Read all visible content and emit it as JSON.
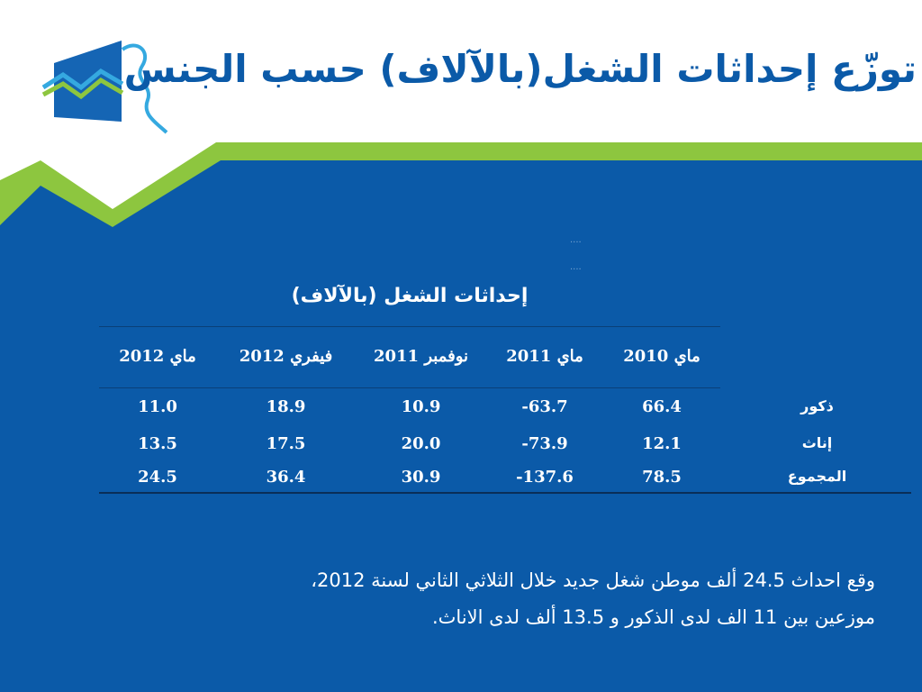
{
  "title": "توزّع إحداثات الشغل(بالآلاف) حسب الجنس",
  "table": {
    "title": "إحداثات الشغل (بالآلاف)",
    "columns": [
      "ماي 2010",
      "ماي 2011",
      "نوفمبر 2011",
      "فيفري 2012",
      "ماي 2012"
    ],
    "rows": [
      {
        "label": "ذكور",
        "values": [
          "66.4",
          "63.7-",
          "10.9",
          "18.9",
          "11.0"
        ]
      },
      {
        "label": "إناث",
        "values": [
          "12.1",
          "73.9-",
          "20.0",
          "17.5",
          "13.5"
        ]
      },
      {
        "label": "المجموع",
        "values": [
          "78.5",
          "137.6-",
          "30.9",
          "36.4",
          "24.5"
        ]
      }
    ]
  },
  "note": {
    "line1": "وقع احداث 24.5 ألف موطن شغل جديد خلال الثلاثي الثاني لسنة 2012،",
    "line2": "موزعين بين 11 الف لدى الذكور و 13.5 ألف لدى الاناث."
  },
  "colors": {
    "background_blue": "#0b5aa8",
    "accent_green": "#8dc63f",
    "logo_blue": "#1565b4",
    "logo_cyan": "#35a9e0"
  }
}
